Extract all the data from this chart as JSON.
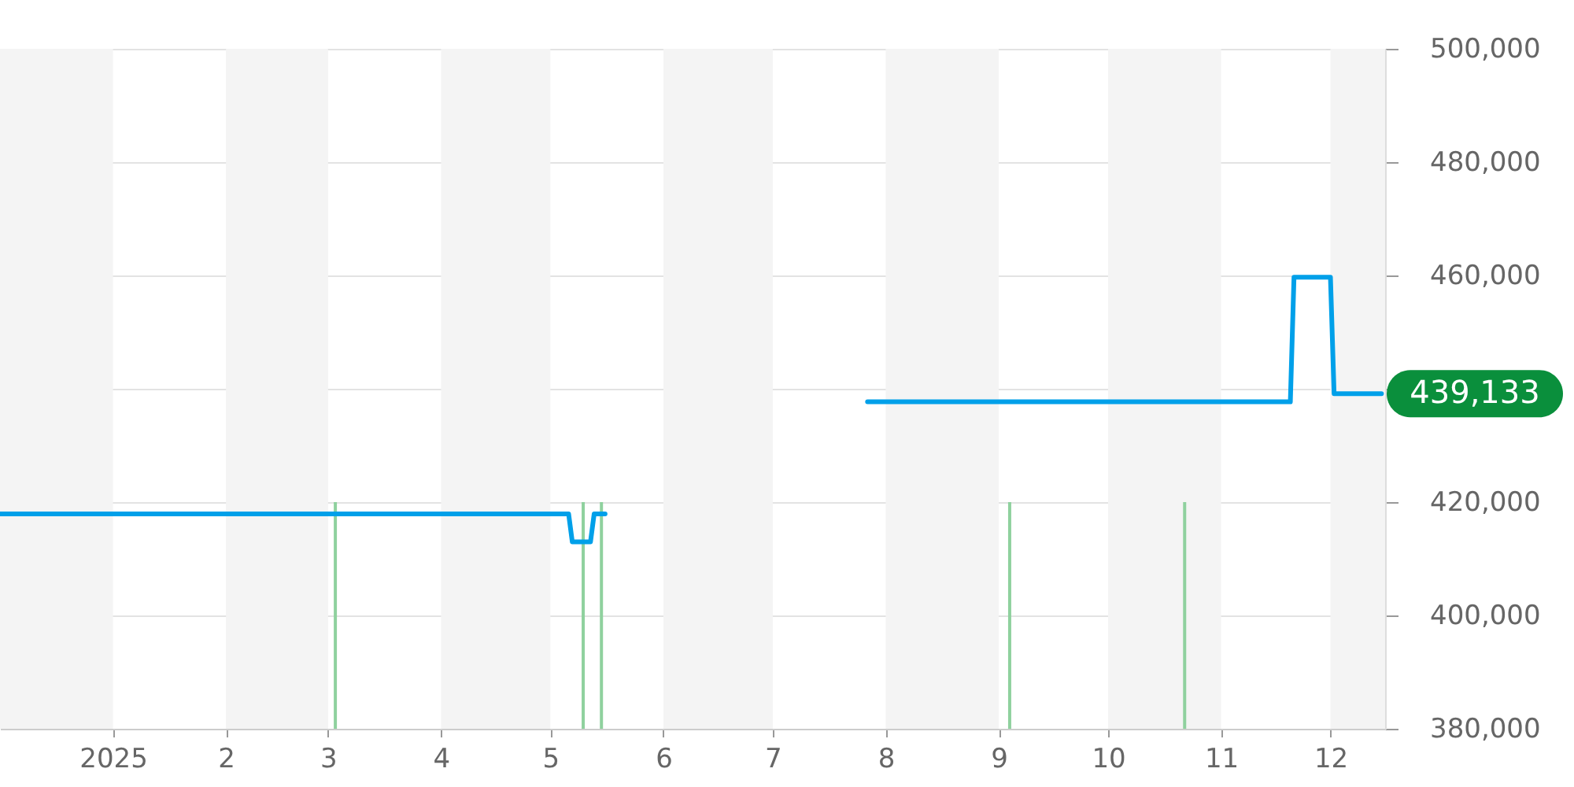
{
  "chart_data": {
    "type": "line",
    "xlim": [
      "2024-12-01",
      "2025-12-16"
    ],
    "xticks": [
      {
        "value": "2025-01-01",
        "label": "2025"
      },
      {
        "value": "2025-02-01",
        "label": "2"
      },
      {
        "value": "2025-03-01",
        "label": "3"
      },
      {
        "value": "2025-04-01",
        "label": "4"
      },
      {
        "value": "2025-05-01",
        "label": "5"
      },
      {
        "value": "2025-06-01",
        "label": "6"
      },
      {
        "value": "2025-07-01",
        "label": "7"
      },
      {
        "value": "2025-08-01",
        "label": "8"
      },
      {
        "value": "2025-09-01",
        "label": "9"
      },
      {
        "value": "2025-10-01",
        "label": "10"
      },
      {
        "value": "2025-11-01",
        "label": "11"
      },
      {
        "value": "2025-12-01",
        "label": "12"
      }
    ],
    "ylim": [
      380000,
      500000
    ],
    "yticks": [
      {
        "value": 380000,
        "label": "380,000"
      },
      {
        "value": 400000,
        "label": "400,000"
      },
      {
        "value": 420000,
        "label": "420,000"
      },
      {
        "value": 440000,
        "label": null
      },
      {
        "value": 460000,
        "label": "460,000"
      },
      {
        "value": 480000,
        "label": "480,000"
      },
      {
        "value": 500000,
        "label": "500,000"
      }
    ],
    "grid": "y",
    "bands": [
      {
        "axis": "x",
        "from": "2024-12-01",
        "to": "2025-01-01",
        "color": "#f4f4f4"
      },
      {
        "axis": "x",
        "from": "2025-02-01",
        "to": "2025-03-01",
        "color": "#f4f4f4"
      },
      {
        "axis": "x",
        "from": "2025-04-01",
        "to": "2025-05-01",
        "color": "#f4f4f4"
      },
      {
        "axis": "x",
        "from": "2025-06-01",
        "to": "2025-07-01",
        "color": "#f4f4f4"
      },
      {
        "axis": "x",
        "from": "2025-08-01",
        "to": "2025-09-01",
        "color": "#f4f4f4"
      },
      {
        "axis": "x",
        "from": "2025-10-01",
        "to": "2025-11-01",
        "color": "#f4f4f4"
      },
      {
        "axis": "x",
        "from": "2025-12-01",
        "to": "2025-12-16",
        "color": "#f4f4f4"
      }
    ],
    "series": [
      {
        "type": "bar",
        "color": "#8fd19e",
        "x": [
          "2025-03-03",
          "2025-05-10",
          "2025-05-15",
          "2025-09-04",
          "2025-10-22"
        ],
        "values": [
          420000,
          420000,
          420000,
          420000,
          420000
        ]
      },
      {
        "color": "#00a0e9",
        "line_style": "solid",
        "x": [
          "2024-12-01",
          "2025-05-06",
          "2025-05-07",
          "2025-05-12",
          "2025-05-13",
          "2025-05-16",
          "2025-06-15",
          "2025-07-27",
          "2025-11-20",
          "2025-11-21",
          "2025-12-01",
          "2025-12-02",
          "2025-12-15"
        ],
        "values": [
          417900,
          417900,
          413000,
          413000,
          417900,
          417900,
          null,
          437700,
          437700,
          459700,
          459700,
          439133,
          439133
        ],
        "value_labels": [
          null,
          null,
          null,
          null,
          null,
          null,
          null,
          null,
          null,
          null,
          null,
          null,
          "439,133"
        ]
      }
    ]
  }
}
